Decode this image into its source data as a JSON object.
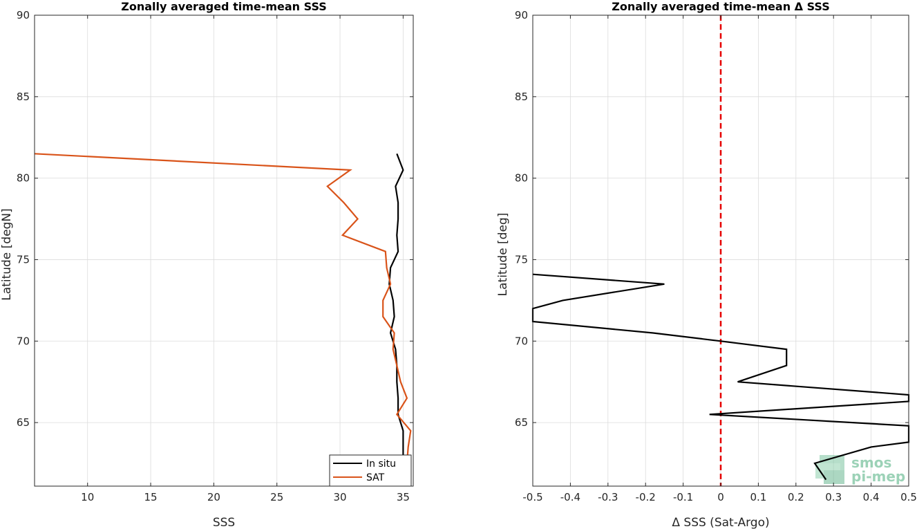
{
  "chart_data": [
    {
      "type": "line",
      "title": "Zonally averaged time-mean SSS",
      "xlabel": "SSS",
      "ylabel": "Latitude [degN]",
      "xlim": [
        5.8,
        35.8
      ],
      "ylim": [
        61.1,
        90
      ],
      "xticks": [
        10,
        15,
        20,
        25,
        30,
        35
      ],
      "yticks": [
        65,
        70,
        75,
        80,
        85,
        90
      ],
      "grid": true,
      "legend_position": "bottom-right",
      "series": [
        {
          "name": "In situ",
          "color": "#000000",
          "x": [
            34.5,
            35.0,
            34.4,
            34.6,
            34.6,
            34.5,
            34.6,
            34.0,
            33.9,
            34.2,
            34.3,
            34.0,
            34.4,
            34.5,
            34.5,
            34.6,
            34.6,
            35.0,
            35.0,
            35.0,
            35.1
          ],
          "y": [
            81.5,
            80.5,
            79.5,
            78.5,
            77.5,
            76.5,
            75.5,
            74.5,
            73.5,
            72.5,
            71.5,
            70.5,
            69.5,
            68.5,
            67.5,
            66.5,
            65.5,
            64.5,
            63.5,
            62.5,
            61.5
          ]
        },
        {
          "name": "SAT",
          "color": "#d95319",
          "x": [
            5.8,
            30.8,
            29.0,
            30.3,
            31.4,
            30.2,
            33.6,
            33.7,
            34.0,
            33.4,
            33.4,
            34.3,
            34.2,
            34.5,
            34.8,
            35.3,
            34.5,
            35.6,
            35.4,
            35.3,
            35.4
          ],
          "y": [
            81.5,
            80.5,
            79.5,
            78.5,
            77.5,
            76.5,
            75.5,
            74.5,
            73.5,
            72.5,
            71.5,
            70.5,
            69.5,
            68.5,
            67.5,
            66.5,
            65.5,
            64.5,
            63.5,
            62.5,
            61.5
          ]
        }
      ]
    },
    {
      "type": "line",
      "title": "Zonally averaged time-mean Δ SSS",
      "xlabel": "Δ SSS (Sat-Argo)",
      "ylabel": "Latitude [deg]",
      "xlim": [
        -0.5,
        0.5
      ],
      "ylim": [
        61.1,
        90
      ],
      "xticks": [
        -0.5,
        -0.4,
        -0.3,
        -0.2,
        -0.1,
        0,
        0.1,
        0.2,
        0.3,
        0.4,
        0.5
      ],
      "xtick_labels": [
        "-0.5",
        "-0.4",
        "-0.3",
        "-0.2",
        "-0.1",
        "0",
        "0.1",
        "0.2",
        "0.3",
        "0.4",
        "0.5"
      ],
      "yticks": [
        65,
        70,
        75,
        80,
        85,
        90
      ],
      "grid": true,
      "reference_line": {
        "x": 0,
        "color": "#e60000",
        "style": "dashed"
      },
      "series": [
        {
          "color": "#000000",
          "x": [
            -0.5,
            -0.15,
            -0.42,
            -0.5,
            -0.5,
            -0.18,
            0.0,
            0.175,
            0.175,
            0.045,
            0.5,
            0.5,
            -0.03,
            0.5,
            0.5,
            0.4,
            0.25,
            0.28
          ],
          "y": [
            74.1,
            73.5,
            72.5,
            72.0,
            71.2,
            70.5,
            70.0,
            69.5,
            68.5,
            67.5,
            66.7,
            66.3,
            65.5,
            64.8,
            63.8,
            63.5,
            62.5,
            61.5
          ]
        }
      ]
    }
  ],
  "legend": {
    "items": [
      "In situ",
      "SAT"
    ]
  },
  "watermark": {
    "line1": "smos",
    "line2": "pi-mep",
    "color": "#7cc4a0"
  }
}
